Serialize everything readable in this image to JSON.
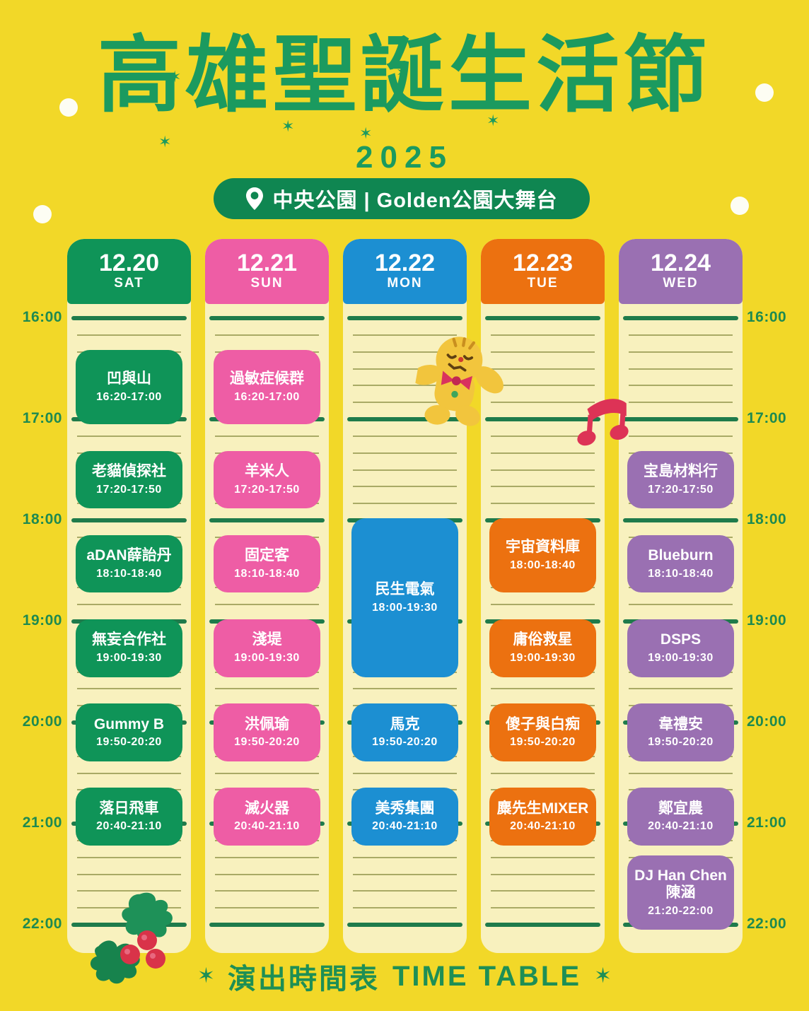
{
  "header": {
    "title": "高雄聖誕生活節",
    "year": "2025",
    "location_badge": "中央公園 | Golden公園大舞台"
  },
  "footer": {
    "label_zh": "演出時間表",
    "label_en": "TIME TABLE",
    "star": "✶"
  },
  "icons": {
    "location_pin": "map-pin shape",
    "sparkle_star": "✶",
    "decorations": [
      "gingerbread-cookie",
      "music-note",
      "holly-berries",
      "white-dots"
    ]
  },
  "colors": {
    "background": "#F2D828",
    "column_paper": "#F8F1BE",
    "hour_line": "#1F7B4B",
    "minute_line": "#8F9247",
    "title_green": "#1B9A5F",
    "badge_green": "#0F8651",
    "sat_green": "#0F9458",
    "sun_pink": "#EE5DA5",
    "mon_blue": "#1C8FD2",
    "tue_orange": "#EC7110",
    "wed_purple": "#9A70B2"
  },
  "timeline": {
    "hour_labels": [
      "16:00",
      "17:00",
      "18:00",
      "19:00",
      "20:00",
      "21:00",
      "22:00"
    ]
  },
  "columns": [
    {
      "date": "12.20",
      "day": "SAT",
      "color": "#0F9458",
      "events": [
        {
          "name": "凹與山",
          "time": "16:20-17:00"
        },
        {
          "name": "老貓偵探社",
          "time": "17:20-17:50"
        },
        {
          "name": "aDAN薛詒丹",
          "time": "18:10-18:40"
        },
        {
          "name": "無妄合作社",
          "time": "19:00-19:30"
        },
        {
          "name": "Gummy B",
          "time": "19:50-20:20"
        },
        {
          "name": "落日飛車",
          "time": "20:40-21:10"
        }
      ]
    },
    {
      "date": "12.21",
      "day": "SUN",
      "color": "#EE5DA5",
      "events": [
        {
          "name": "過敏症候群",
          "time": "16:20-17:00"
        },
        {
          "name": "羊米人",
          "time": "17:20-17:50"
        },
        {
          "name": "固定客",
          "time": "18:10-18:40"
        },
        {
          "name": "淺堤",
          "time": "19:00-19:30"
        },
        {
          "name": "洪佩瑜",
          "time": "19:50-20:20"
        },
        {
          "name": "滅火器",
          "time": "20:40-21:10"
        }
      ]
    },
    {
      "date": "12.22",
      "day": "MON",
      "color": "#1C8FD2",
      "events": [
        {
          "name": "民生電氣",
          "time": "18:00-19:30"
        },
        {
          "name": "馬克",
          "time": "19:50-20:20"
        },
        {
          "name": "美秀集團",
          "time": "20:40-21:10"
        }
      ]
    },
    {
      "date": "12.23",
      "day": "TUE",
      "color": "#EC7110",
      "events": [
        {
          "name": "宇宙資料庫",
          "time": "18:00-18:40"
        },
        {
          "name": "庸俗救星",
          "time": "19:00-19:30"
        },
        {
          "name": "傻子與白痴",
          "time": "19:50-20:20"
        },
        {
          "name": "麋先生MIXER",
          "time": "20:40-21:10"
        }
      ]
    },
    {
      "date": "12.24",
      "day": "WED",
      "color": "#9A70B2",
      "events": [
        {
          "name": "宝島材料行",
          "time": "17:20-17:50"
        },
        {
          "name": "Blueburn",
          "time": "18:10-18:40"
        },
        {
          "name": "DSPS",
          "time": "19:00-19:30"
        },
        {
          "name": "韋禮安",
          "time": "19:50-20:20"
        },
        {
          "name": "鄭宜農",
          "time": "20:40-21:10"
        },
        {
          "name": "DJ Han Chen\n陳涵",
          "time": "21:20-22:00"
        }
      ]
    }
  ]
}
